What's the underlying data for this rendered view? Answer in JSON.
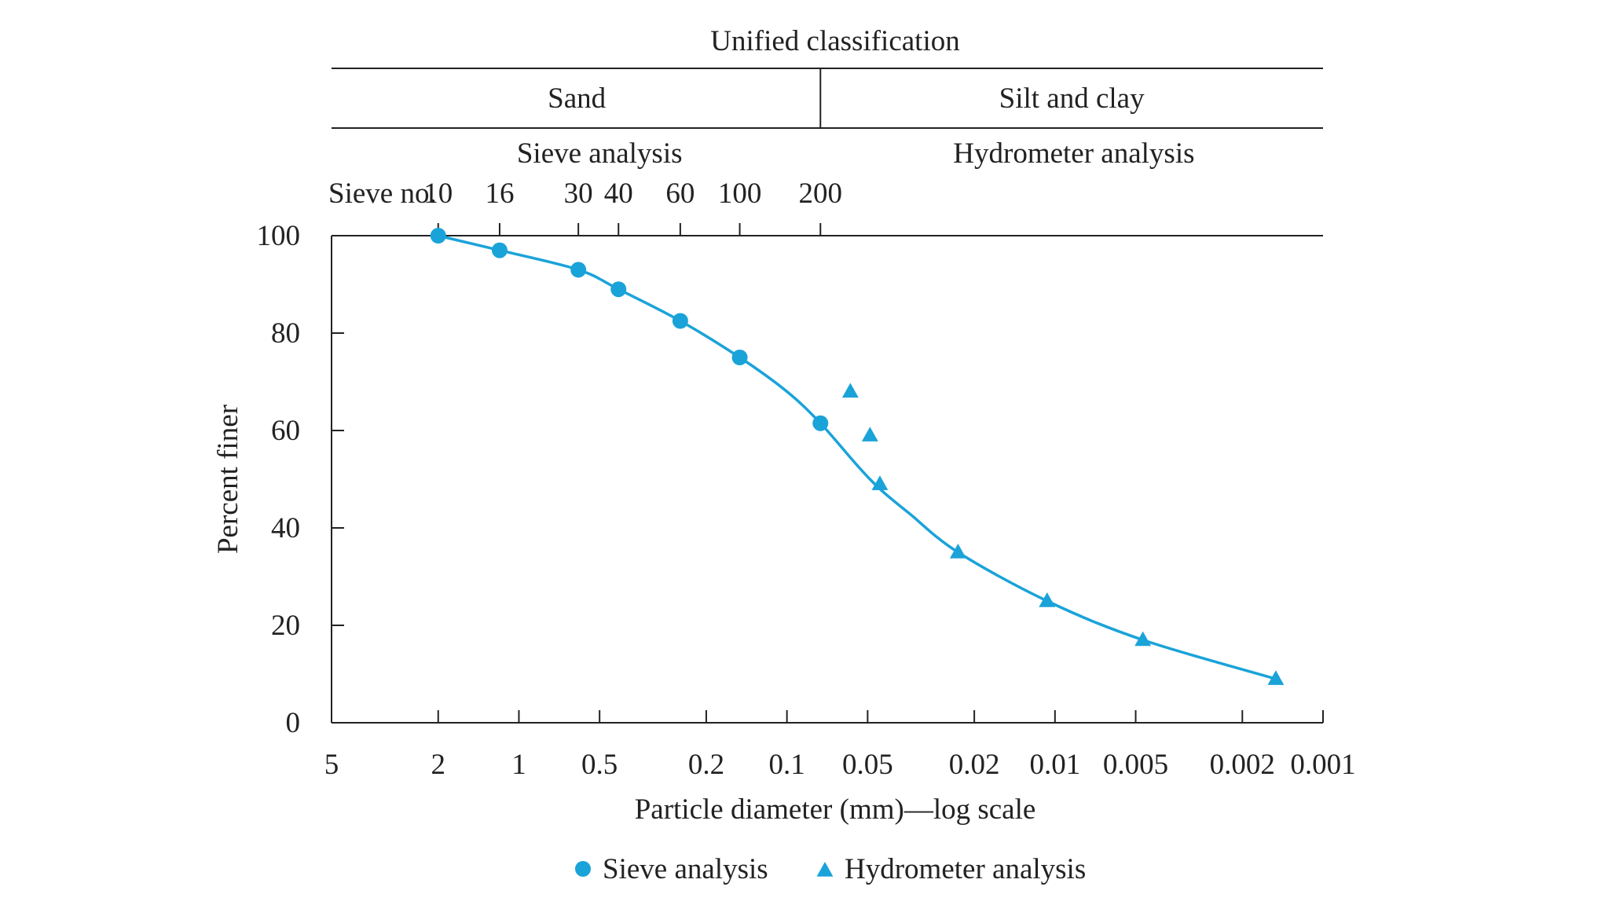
{
  "chart_data": {
    "type": "scatter",
    "xlabel": "Particle diameter (mm)—log scale",
    "ylabel": "Percent finer",
    "x_scale": "log",
    "x_reversed": true,
    "xlim": [
      5,
      0.001
    ],
    "ylim": [
      0,
      100
    ],
    "x_ticks": [
      5,
      2,
      1,
      0.5,
      0.2,
      0.1,
      0.05,
      0.02,
      0.01,
      0.005,
      0.002,
      0.001
    ],
    "x_tick_labels": [
      "5",
      "2",
      "1",
      "0.5",
      "0.2",
      "0.1",
      "0.05",
      "0.02",
      "0.01",
      "0.005",
      "0.002",
      "0.001"
    ],
    "y_ticks": [
      0,
      20,
      40,
      60,
      80,
      100
    ],
    "y_tick_labels": [
      "0",
      "20",
      "40",
      "60",
      "80",
      "100"
    ],
    "grid": false,
    "legend_position": "bottom-center",
    "header": {
      "title": "Unified classification",
      "zones": [
        {
          "label": "Sand",
          "from": 5,
          "to": 0.075
        },
        {
          "label": "Silt and clay",
          "from": 0.075,
          "to": 0.001
        }
      ],
      "methods": [
        {
          "label": "Sieve analysis",
          "at": 0.5
        },
        {
          "label": "Hydrometer analysis",
          "at": 0.0085
        }
      ],
      "sieve_label": "Sieve no.",
      "sieves": [
        {
          "label": "10",
          "size": 2.0
        },
        {
          "label": "16",
          "size": 1.18
        },
        {
          "label": "30",
          "size": 0.6
        },
        {
          "label": "40",
          "size": 0.425
        },
        {
          "label": "60",
          "size": 0.25
        },
        {
          "label": "100",
          "size": 0.15
        },
        {
          "label": "200",
          "size": 0.075
        }
      ]
    },
    "series": [
      {
        "name": "Sieve analysis",
        "marker": "circle",
        "color": "#1aa3d9",
        "x": [
          2.0,
          1.18,
          0.6,
          0.425,
          0.25,
          0.15,
          0.075
        ],
        "y": [
          100,
          97,
          93,
          89,
          82.5,
          75,
          61.5
        ]
      },
      {
        "name": "Hydrometer analysis",
        "marker": "triangle",
        "color": "#1aa3d9",
        "x": [
          0.058,
          0.049,
          0.045,
          0.023,
          0.0107,
          0.0047,
          0.0015
        ],
        "y": [
          68,
          59,
          49,
          35,
          25,
          17,
          9
        ]
      }
    ],
    "fitted_curve": {
      "color": "#1aa3d9",
      "x": [
        2.0,
        1.18,
        0.6,
        0.425,
        0.25,
        0.15,
        0.1,
        0.075,
        0.055,
        0.045,
        0.035,
        0.023,
        0.0107,
        0.0047,
        0.0015
      ],
      "y": [
        100,
        97,
        93,
        89,
        82.5,
        75,
        68,
        61.5,
        53,
        48,
        43,
        35,
        25,
        17,
        9
      ]
    }
  }
}
